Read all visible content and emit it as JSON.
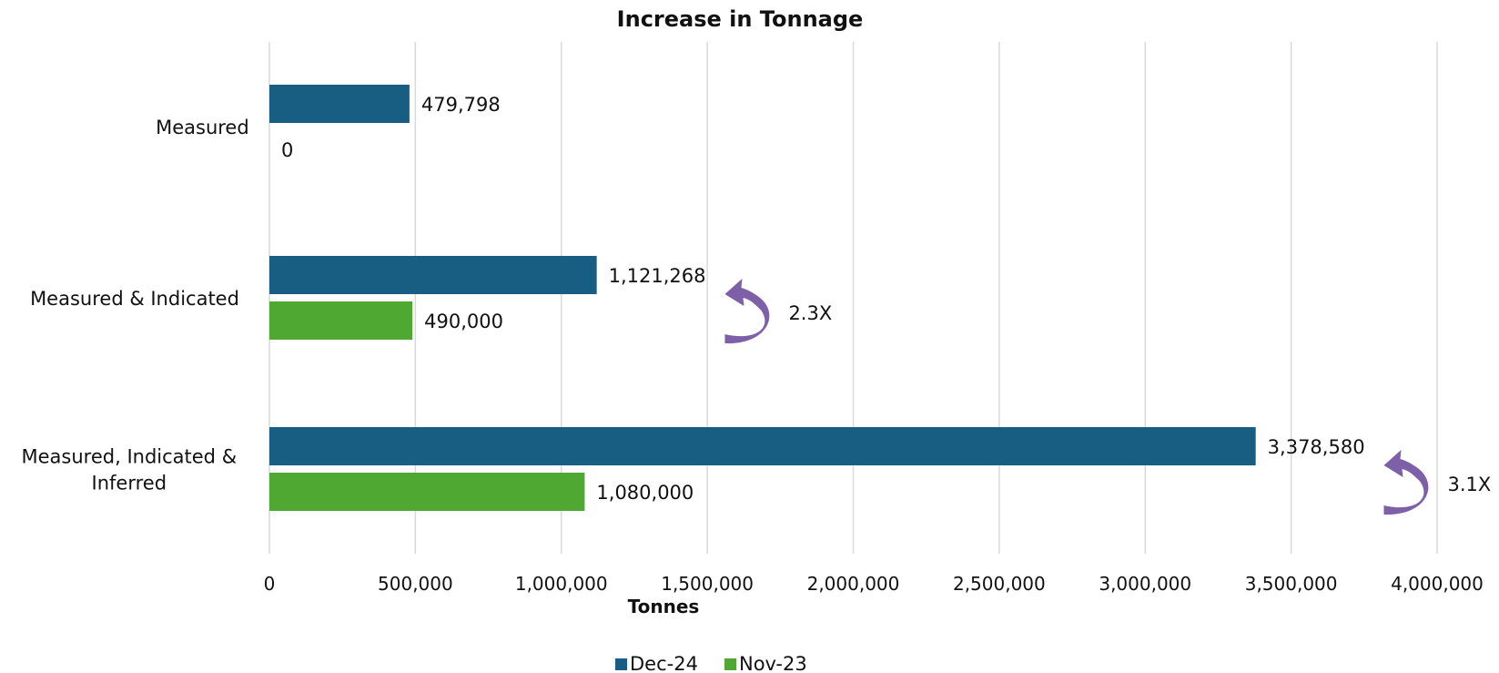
{
  "chart_data": {
    "type": "bar",
    "orientation": "horizontal",
    "title": "Increase in Tonnage",
    "xlabel": "Tonnes",
    "ylabel": "",
    "xlim": [
      0,
      4000000
    ],
    "xticks": [
      0,
      500000,
      1000000,
      1500000,
      2000000,
      2500000,
      3000000,
      3500000,
      4000000
    ],
    "xtick_labels": [
      "0",
      "500,000",
      "1,000,000",
      "1,500,000",
      "2,000,000",
      "2,500,000",
      "3,000,000",
      "3,500,000",
      "4,000,000"
    ],
    "categories": [
      [
        "Measured"
      ],
      [
        "Measured & Indicated"
      ],
      [
        "Measured, Indicated &",
        "Inferred"
      ]
    ],
    "series": [
      {
        "name": "Dec-24",
        "color": "#175e82",
        "values": [
          479798,
          1121268,
          3378580
        ],
        "labels": [
          "479,798",
          "1,121,268",
          "3,378,580"
        ]
      },
      {
        "name": "Nov-23",
        "color": "#4fa832",
        "values": [
          0,
          490000,
          1080000
        ],
        "labels": [
          "0",
          "490,000",
          "1,080,000"
        ]
      }
    ],
    "annotations": [
      {
        "category_index": 1,
        "text": "2.3X",
        "icon": "curved-arrow-icon",
        "color": "#7d60a8"
      },
      {
        "category_index": 2,
        "text": "3.1X",
        "icon": "curved-arrow-icon",
        "color": "#7d60a8"
      }
    ],
    "grid": true,
    "legend_position": "bottom-center"
  }
}
